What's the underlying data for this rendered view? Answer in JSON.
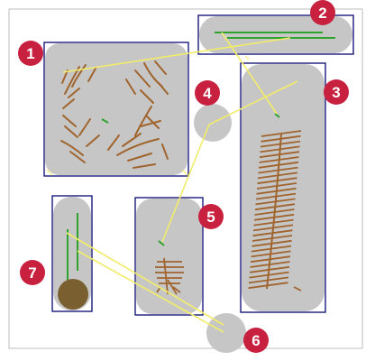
{
  "colors": {
    "panel_fill": "#c6c6c6",
    "panel_border": "#1a1a7a",
    "root_brown": "#a0642e",
    "shoot_green": "#2ea32e",
    "link_yellow": "#f2ec6a",
    "badge_red": "#c8203f",
    "seed_fill": "#7a6030",
    "frame_border": "#c8c8c8"
  },
  "labels": [
    {
      "id": "1",
      "text": "1"
    },
    {
      "id": "2",
      "text": "2"
    },
    {
      "id": "3",
      "text": "3"
    },
    {
      "id": "4",
      "text": "4"
    },
    {
      "id": "5",
      "text": "5"
    },
    {
      "id": "6",
      "text": "6"
    },
    {
      "id": "7",
      "text": "7"
    }
  ]
}
